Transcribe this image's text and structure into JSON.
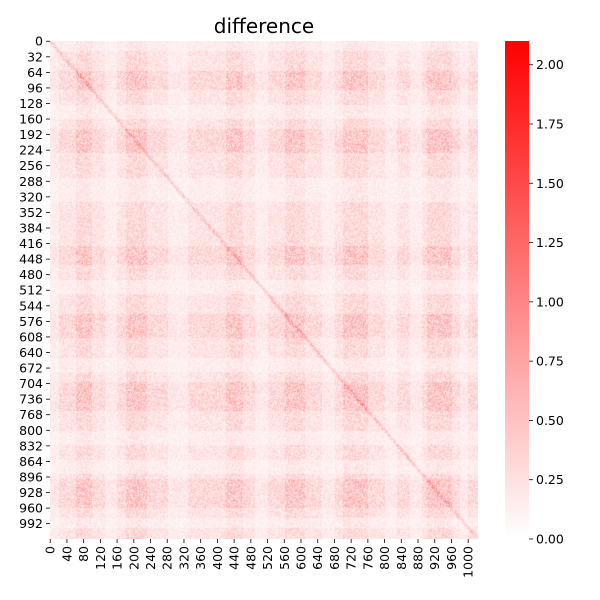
{
  "chart_data": {
    "type": "heatmap",
    "title": "difference",
    "matrix_size": 1024,
    "x_ticks": [
      0,
      40,
      80,
      120,
      160,
      200,
      240,
      280,
      320,
      360,
      400,
      440,
      480,
      520,
      560,
      600,
      640,
      680,
      720,
      760,
      800,
      840,
      880,
      920,
      960,
      1000
    ],
    "y_ticks": [
      0,
      32,
      64,
      96,
      128,
      160,
      192,
      224,
      256,
      288,
      320,
      352,
      384,
      416,
      448,
      480,
      512,
      544,
      576,
      608,
      640,
      672,
      704,
      736,
      768,
      800,
      832,
      864,
      896,
      928,
      960,
      992
    ],
    "colorbar": {
      "min": 0.0,
      "max": 2.1,
      "ticks": [
        "0.00",
        "0.25",
        "0.50",
        "0.75",
        "1.00",
        "1.25",
        "1.50",
        "1.75",
        "2.00"
      ],
      "tick_values": [
        0.0,
        0.25,
        0.5,
        0.75,
        1.0,
        1.25,
        1.5,
        1.75,
        2.0
      ],
      "color_low": "#ffffff",
      "color_high": "#ff0000"
    },
    "pattern": {
      "strong_bands": [
        [
          60,
          100
        ],
        [
          180,
          230
        ],
        [
          420,
          460
        ],
        [
          560,
          610
        ],
        [
          700,
          760
        ],
        [
          900,
          960
        ]
      ],
      "weak_bands": [
        [
          0,
          20
        ],
        [
          130,
          160
        ],
        [
          280,
          330
        ],
        [
          490,
          520
        ],
        [
          650,
          680
        ],
        [
          800,
          830
        ],
        [
          860,
          890
        ],
        [
          980,
          1000
        ]
      ],
      "diagonal": true
    }
  }
}
